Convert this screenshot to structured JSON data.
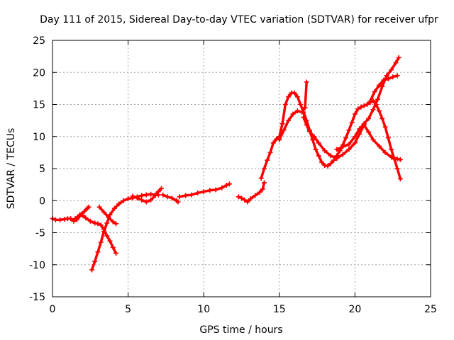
{
  "chart_data": {
    "type": "scatter",
    "title": "Day 111 of 2015, Sidereal Day-to-day VTEC variation (SDTVAR) for receiver ufpr",
    "xlabel": "GPS time / hours",
    "ylabel": "SDTVAR / TECUs",
    "xlim": [
      0,
      25
    ],
    "ylim": [
      -15,
      25
    ],
    "xticks": [
      0,
      5,
      10,
      15,
      20,
      25
    ],
    "yticks": [
      -15,
      -10,
      -5,
      0,
      5,
      10,
      15,
      20,
      25
    ],
    "grid": true,
    "color": "#ff0000",
    "marker": "plus",
    "series": [
      {
        "points": [
          [
            0.0,
            -2.8
          ],
          [
            0.2,
            -3.0
          ],
          [
            0.5,
            -3.0
          ],
          [
            0.8,
            -2.9
          ],
          [
            1.0,
            -2.8
          ],
          [
            1.2,
            -2.8
          ],
          [
            1.4,
            -3.2
          ],
          [
            1.6,
            -3.0
          ],
          [
            1.8,
            -2.4
          ],
          [
            2.0,
            -2.3
          ],
          [
            2.2,
            -2.7
          ],
          [
            2.5,
            -3.2
          ],
          [
            2.8,
            -3.5
          ],
          [
            3.0,
            -3.6
          ],
          [
            3.2,
            -3.8
          ],
          [
            3.4,
            -4.5
          ],
          [
            3.6,
            -5.5
          ],
          [
            3.8,
            -6.3
          ],
          [
            4.0,
            -7.3
          ],
          [
            4.2,
            -8.2
          ]
        ]
      },
      {
        "points": [
          [
            1.5,
            -2.8
          ],
          [
            1.8,
            -2.2
          ],
          [
            2.1,
            -1.7
          ],
          [
            2.3,
            -1.2
          ],
          [
            2.4,
            -1.0
          ]
        ]
      },
      {
        "points": [
          [
            2.6,
            -10.8
          ],
          [
            2.8,
            -9.5
          ],
          [
            3.0,
            -8.0
          ],
          [
            3.2,
            -6.5
          ],
          [
            3.4,
            -4.8
          ],
          [
            3.6,
            -3.5
          ],
          [
            3.8,
            -2.2
          ],
          [
            4.1,
            -1.2
          ],
          [
            4.4,
            -0.5
          ],
          [
            4.7,
            0.0
          ],
          [
            5.0,
            0.3
          ],
          [
            5.3,
            0.4
          ],
          [
            5.6,
            0.6
          ],
          [
            5.9,
            0.8
          ],
          [
            6.2,
            0.9
          ],
          [
            6.5,
            1.0
          ],
          [
            6.8,
            0.9
          ],
          [
            7.0,
            0.9
          ]
        ]
      },
      {
        "points": [
          [
            3.1,
            -1.0
          ],
          [
            3.4,
            -1.8
          ],
          [
            3.7,
            -2.6
          ],
          [
            4.0,
            -3.3
          ],
          [
            4.2,
            -3.6
          ]
        ]
      },
      {
        "points": [
          [
            5.3,
            0.7
          ],
          [
            5.6,
            0.4
          ],
          [
            5.9,
            0.1
          ],
          [
            6.2,
            -0.2
          ],
          [
            6.5,
            0.1
          ],
          [
            6.8,
            0.8
          ],
          [
            7.0,
            1.4
          ],
          [
            7.2,
            1.9
          ]
        ]
      },
      {
        "points": [
          [
            7.3,
            0.9
          ],
          [
            7.6,
            0.6
          ],
          [
            7.9,
            0.4
          ],
          [
            8.2,
            0.0
          ],
          [
            8.3,
            -0.2
          ]
        ]
      },
      {
        "points": [
          [
            8.4,
            0.6
          ],
          [
            8.8,
            0.8
          ],
          [
            9.2,
            0.9
          ],
          [
            9.6,
            1.2
          ],
          [
            10.0,
            1.4
          ],
          [
            10.4,
            1.6
          ],
          [
            10.8,
            1.7
          ],
          [
            11.2,
            2.0
          ],
          [
            11.5,
            2.4
          ],
          [
            11.7,
            2.6
          ]
        ]
      },
      {
        "points": [
          [
            12.3,
            0.6
          ],
          [
            12.5,
            0.4
          ],
          [
            12.7,
            0.1
          ],
          [
            12.9,
            -0.2
          ],
          [
            13.1,
            0.3
          ],
          [
            13.4,
            0.8
          ],
          [
            13.7,
            1.3
          ],
          [
            13.9,
            1.8
          ],
          [
            14.0,
            2.8
          ]
        ]
      },
      {
        "points": [
          [
            13.8,
            3.5
          ],
          [
            14.0,
            5.0
          ],
          [
            14.2,
            6.3
          ],
          [
            14.4,
            7.5
          ],
          [
            14.6,
            9.0
          ],
          [
            14.8,
            9.6
          ],
          [
            15.0,
            10.0
          ],
          [
            15.2,
            12.0
          ],
          [
            15.4,
            15.0
          ],
          [
            15.6,
            16.2
          ],
          [
            15.8,
            16.8
          ],
          [
            16.0,
            16.8
          ],
          [
            16.2,
            16.2
          ],
          [
            16.4,
            15.0
          ],
          [
            16.6,
            13.8
          ],
          [
            16.8,
            12.5
          ],
          [
            17.0,
            11.0
          ],
          [
            17.2,
            9.5
          ],
          [
            17.4,
            8.0
          ],
          [
            17.6,
            7.0
          ],
          [
            17.8,
            6.0
          ],
          [
            18.0,
            5.5
          ],
          [
            18.2,
            5.4
          ],
          [
            18.4,
            5.8
          ],
          [
            18.6,
            6.3
          ],
          [
            18.8,
            7.0
          ],
          [
            19.0,
            7.8
          ],
          [
            19.2,
            8.7
          ],
          [
            19.4,
            9.8
          ],
          [
            19.6,
            11.0
          ],
          [
            19.8,
            12.2
          ],
          [
            20.0,
            13.5
          ],
          [
            20.2,
            14.3
          ],
          [
            20.4,
            14.6
          ],
          [
            20.6,
            14.8
          ],
          [
            20.8,
            15.0
          ],
          [
            21.0,
            15.3
          ],
          [
            21.2,
            15.6
          ],
          [
            21.4,
            15.0
          ],
          [
            21.6,
            14.0
          ],
          [
            21.8,
            12.8
          ],
          [
            22.0,
            11.5
          ],
          [
            22.2,
            9.8
          ],
          [
            22.4,
            8.0
          ],
          [
            22.6,
            6.5
          ],
          [
            22.8,
            5.0
          ],
          [
            23.0,
            3.4
          ]
        ]
      },
      {
        "points": [
          [
            15.0,
            9.5
          ],
          [
            15.3,
            11.0
          ],
          [
            15.6,
            12.5
          ],
          [
            15.9,
            13.5
          ],
          [
            16.2,
            14.0
          ],
          [
            16.5,
            13.8
          ],
          [
            16.7,
            14.5
          ],
          [
            16.8,
            18.5
          ]
        ]
      },
      {
        "points": [
          [
            16.6,
            13.0
          ],
          [
            16.8,
            11.8
          ],
          [
            17.0,
            10.8
          ],
          [
            17.3,
            10.0
          ],
          [
            17.6,
            9.0
          ],
          [
            18.0,
            7.8
          ],
          [
            18.4,
            7.0
          ],
          [
            18.8,
            6.6
          ],
          [
            19.2,
            7.2
          ],
          [
            19.6,
            8.0
          ],
          [
            20.0,
            9.0
          ],
          [
            20.3,
            10.4
          ],
          [
            20.6,
            11.8
          ],
          [
            20.9,
            10.7
          ],
          [
            21.2,
            9.5
          ],
          [
            21.6,
            8.5
          ],
          [
            22.0,
            7.5
          ],
          [
            22.4,
            6.8
          ],
          [
            22.8,
            6.5
          ],
          [
            23.0,
            6.4
          ]
        ]
      },
      {
        "points": [
          [
            18.8,
            8.0
          ],
          [
            19.2,
            8.4
          ],
          [
            19.6,
            8.8
          ],
          [
            20.0,
            10.0
          ],
          [
            20.3,
            11.2
          ],
          [
            20.6,
            12.0
          ],
          [
            20.9,
            12.8
          ],
          [
            21.2,
            14.2
          ],
          [
            21.5,
            15.8
          ],
          [
            21.8,
            17.8
          ],
          [
            22.1,
            19.5
          ],
          [
            22.4,
            20.4
          ],
          [
            22.7,
            21.5
          ],
          [
            22.9,
            22.3
          ]
        ]
      },
      {
        "points": [
          [
            21.0,
            15.5
          ],
          [
            21.3,
            17.0
          ],
          [
            21.6,
            18.0
          ],
          [
            21.9,
            18.8
          ],
          [
            22.2,
            19.0
          ],
          [
            22.5,
            19.3
          ],
          [
            22.8,
            19.5
          ]
        ]
      }
    ]
  }
}
